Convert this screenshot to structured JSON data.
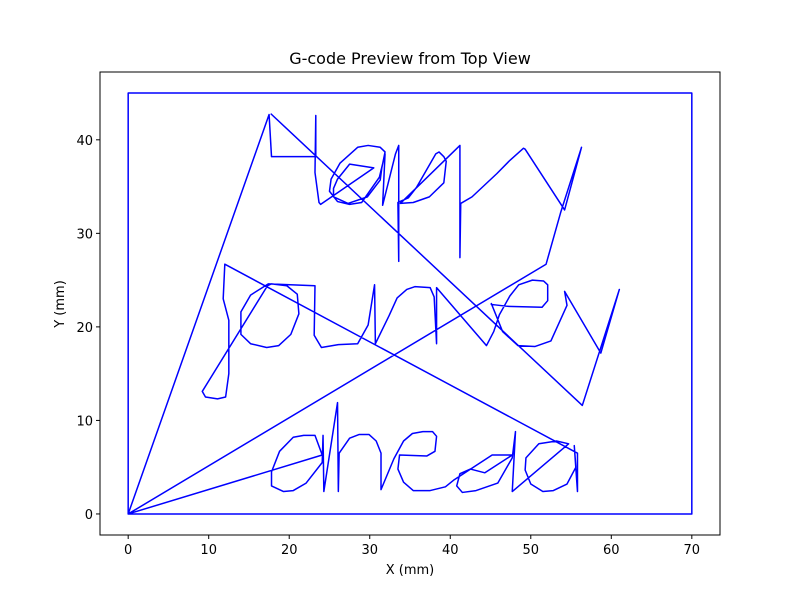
{
  "chart_data": {
    "type": "line",
    "title": "G-code Preview from Top View",
    "xlabel": "X (mm)",
    "ylabel": "Y (mm)",
    "xlim": [
      -3.5,
      73.5
    ],
    "ylim": [
      -2.25,
      47.25
    ],
    "xticks": [
      0,
      10,
      20,
      30,
      40,
      50,
      60,
      70
    ],
    "yticks": [
      0,
      10,
      20,
      30,
      40
    ],
    "grid": false,
    "series_color": "#0000ff",
    "series": [
      {
        "values": [
          [
            0,
            0
          ],
          [
            0,
            45
          ],
          [
            70,
            45
          ],
          [
            70,
            0
          ],
          [
            0,
            0
          ],
          [
            17.5,
            42.7
          ],
          [
            17.8,
            38.2
          ],
          [
            23.3,
            38.2
          ],
          [
            23.3,
            42.6
          ],
          [
            23.2,
            36.5
          ],
          [
            23.7,
            33.3
          ],
          [
            23.9,
            33.1
          ],
          [
            30.5,
            37
          ],
          [
            27.5,
            37.4
          ],
          [
            26,
            35.8
          ],
          [
            25.5,
            34.8
          ],
          [
            25.5,
            33.9
          ],
          [
            27.3,
            33.2
          ],
          [
            29.7,
            33.9
          ],
          [
            31.3,
            35.7
          ],
          [
            31.5,
            37
          ],
          [
            31.9,
            38.7
          ],
          [
            31.3,
            39.2
          ],
          [
            29.8,
            39.4
          ],
          [
            28.5,
            39.2
          ],
          [
            26.3,
            37.5
          ],
          [
            25.2,
            35.8
          ],
          [
            25,
            34.5
          ],
          [
            26,
            33.4
          ],
          [
            27.5,
            33.1
          ],
          [
            29,
            33.3
          ],
          [
            31.2,
            36
          ],
          [
            31.9,
            38.5
          ],
          [
            31.6,
            33
          ],
          [
            33.2,
            38.5
          ],
          [
            33.6,
            39.4
          ],
          [
            33.6,
            27
          ],
          [
            33.5,
            33.3
          ],
          [
            34.8,
            33.8
          ],
          [
            35.8,
            34.9
          ],
          [
            38.2,
            38.5
          ],
          [
            38.6,
            38.7
          ],
          [
            39.2,
            38.2
          ],
          [
            39.5,
            37.7
          ],
          [
            39.2,
            35.4
          ],
          [
            37.4,
            33.9
          ],
          [
            35.4,
            33.3
          ],
          [
            33.8,
            33.2
          ],
          [
            41.2,
            39.4
          ],
          [
            41.2,
            27.4
          ],
          [
            41.3,
            33.2
          ],
          [
            42.7,
            33.9
          ],
          [
            45.8,
            36.4
          ],
          [
            47.4,
            37.8
          ],
          [
            49.1,
            39.1
          ],
          [
            49.3,
            39
          ],
          [
            54.2,
            32.5
          ],
          [
            56.3,
            39.2
          ],
          [
            53.7,
            32.2
          ],
          [
            51.9,
            26.7
          ],
          [
            0,
            0
          ],
          [
            24.1,
            6.3
          ],
          [
            23.2,
            8.4
          ],
          [
            21.8,
            8.4
          ],
          [
            20.5,
            8.2
          ],
          [
            18.8,
            6.7
          ],
          [
            17.8,
            4.5
          ],
          [
            17.8,
            3
          ],
          [
            19.3,
            2.4
          ],
          [
            20.5,
            2.5
          ],
          [
            22.1,
            3.3
          ],
          [
            24.1,
            5.5
          ],
          [
            24.2,
            8.4
          ],
          [
            24.3,
            2.4
          ],
          [
            26,
            11.9
          ],
          [
            26.1,
            2.4
          ],
          [
            26.2,
            6.5
          ],
          [
            27.5,
            8.1
          ],
          [
            28.7,
            8.5
          ],
          [
            29.9,
            8.5
          ],
          [
            30.8,
            7.8
          ],
          [
            31.4,
            6.5
          ],
          [
            31.4,
            2.6
          ],
          [
            33,
            5.9
          ],
          [
            34.2,
            7.8
          ],
          [
            35.3,
            8.6
          ],
          [
            36.6,
            8.8
          ],
          [
            37.8,
            8.8
          ],
          [
            38.3,
            8.3
          ],
          [
            38.1,
            6.7
          ],
          [
            37.1,
            6.2
          ],
          [
            33.7,
            6.3
          ],
          [
            33.5,
            4.8
          ],
          [
            34.2,
            3.4
          ],
          [
            35.4,
            2.5
          ],
          [
            37.5,
            2.5
          ],
          [
            39.4,
            2.9
          ],
          [
            40.4,
            3.6
          ],
          [
            45.2,
            6.3
          ],
          [
            47.7,
            6.3
          ],
          [
            44.3,
            4.4
          ],
          [
            42.5,
            4.8
          ],
          [
            41.2,
            4.3
          ],
          [
            40.8,
            3
          ],
          [
            41.5,
            2.3
          ],
          [
            43.2,
            2.5
          ],
          [
            45.9,
            3.3
          ],
          [
            47.7,
            6
          ],
          [
            48.1,
            8.8
          ],
          [
            47.7,
            2.4
          ],
          [
            54.7,
            7.5
          ],
          [
            53.2,
            7.8
          ],
          [
            51,
            7.5
          ],
          [
            49.4,
            6
          ],
          [
            49.3,
            4.7
          ],
          [
            50,
            3.2
          ],
          [
            51.5,
            2.4
          ],
          [
            52.8,
            2.5
          ],
          [
            54.5,
            3.2
          ],
          [
            55.6,
            5
          ],
          [
            55.4,
            7.3
          ],
          [
            55.8,
            2.4
          ],
          [
            55.8,
            6.5
          ],
          [
            12,
            26.7
          ],
          [
            11.8,
            23
          ],
          [
            12.5,
            20.7
          ],
          [
            12.5,
            15
          ],
          [
            12.1,
            12.5
          ],
          [
            11.1,
            12.3
          ],
          [
            9.6,
            12.5
          ],
          [
            9.2,
            13.1
          ],
          [
            17.3,
            24.4
          ],
          [
            17.8,
            24.6
          ],
          [
            19.7,
            24.4
          ],
          [
            21,
            23.5
          ],
          [
            21.2,
            21.4
          ],
          [
            20.2,
            19.2
          ],
          [
            18.7,
            18
          ],
          [
            17.2,
            17.8
          ],
          [
            15.2,
            18.2
          ],
          [
            14,
            19.2
          ],
          [
            14,
            21.6
          ],
          [
            15.2,
            23.4
          ],
          [
            17.4,
            24.6
          ],
          [
            23.2,
            24.4
          ],
          [
            23.1,
            19.1
          ],
          [
            24,
            17.8
          ],
          [
            26.1,
            18.1
          ],
          [
            28.5,
            18.2
          ],
          [
            29.8,
            20.2
          ],
          [
            30.6,
            24.5
          ],
          [
            30.7,
            18.2
          ],
          [
            32.4,
            21.2
          ],
          [
            33.4,
            23.1
          ],
          [
            34.6,
            24
          ],
          [
            35.6,
            24.3
          ],
          [
            37.5,
            24.2
          ],
          [
            38,
            23.2
          ],
          [
            38.3,
            18.2
          ],
          [
            38.3,
            24.2
          ],
          [
            44.5,
            18
          ],
          [
            45.4,
            19.5
          ],
          [
            46.1,
            21.3
          ],
          [
            47.4,
            23.3
          ],
          [
            48.5,
            24.5
          ],
          [
            50.2,
            25
          ],
          [
            51.6,
            24.9
          ],
          [
            52.1,
            24.5
          ],
          [
            52.1,
            22.8
          ],
          [
            51.4,
            22.1
          ],
          [
            47.1,
            22.2
          ],
          [
            45.1,
            22.4
          ],
          [
            45.1,
            22.5
          ],
          [
            46.5,
            19.5
          ],
          [
            48.4,
            18
          ],
          [
            50.5,
            17.9
          ],
          [
            52.5,
            18.5
          ],
          [
            54.5,
            22.3
          ],
          [
            54.2,
            23.8
          ],
          [
            58.7,
            17.2
          ],
          [
            61,
            24
          ],
          [
            56.4,
            11.6
          ],
          [
            17.7,
            42.8
          ]
        ]
      }
    ]
  }
}
